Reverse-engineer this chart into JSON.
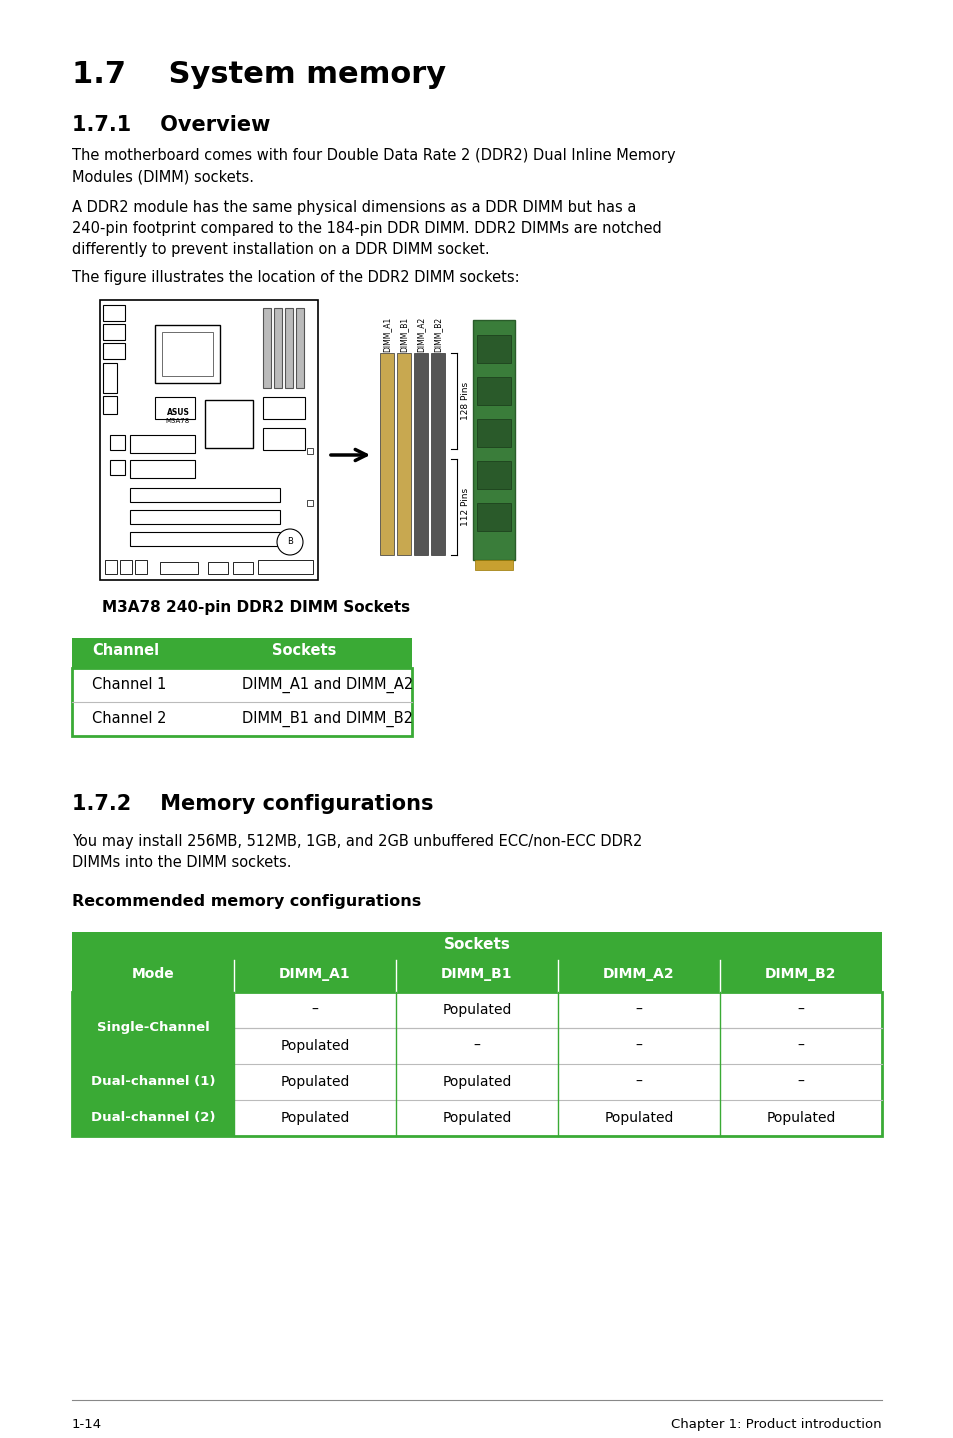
{
  "page_bg": "#ffffff",
  "title_17": "1.7    System memory",
  "title_171": "1.7.1    Overview",
  "para1": "The motherboard comes with four Double Data Rate 2 (DDR2) Dual Inline Memory\nModules (DIMM) sockets.",
  "para2": "A DDR2 module has the same physical dimensions as a DDR DIMM but has a\n240-pin footprint compared to the 184-pin DDR DIMM. DDR2 DIMMs are notched\ndifferently to prevent installation on a DDR DIMM socket.",
  "para3": "The figure illustrates the location of the DDR2 DIMM sockets:",
  "fig_caption": "M3A78 240-pin DDR2 DIMM Sockets",
  "table1_header": [
    "Channel",
    "Sockets"
  ],
  "table1_rows": [
    [
      "Channel 1",
      "DIMM_A1 and DIMM_A2"
    ],
    [
      "Channel 2",
      "DIMM_B1 and DIMM_B2"
    ]
  ],
  "title_172": "1.7.2    Memory configurations",
  "para4": "You may install 256MB, 512MB, 1GB, and 2GB unbuffered ECC/non-ECC DDR2\nDIMMs into the DIMM sockets.",
  "rec_mem_title": "Recommended memory configurations",
  "table2_header_top": "Sockets",
  "table2_header": [
    "Mode",
    "DIMM_A1",
    "DIMM_B1",
    "DIMM_A2",
    "DIMM_B2"
  ],
  "table2_rows": [
    [
      "Single-Channel",
      "–",
      "Populated",
      "–",
      "–"
    ],
    [
      "Single-Channel",
      "Populated",
      "–",
      "–",
      "–"
    ],
    [
      "Dual-channel (1)",
      "Populated",
      "Populated",
      "–",
      "–"
    ],
    [
      "Dual-channel (2)",
      "Populated",
      "Populated",
      "Populated",
      "Populated"
    ]
  ],
  "green_color": "#3aaa35",
  "footer_left": "1-14",
  "footer_right": "Chapter 1: Product introduction",
  "body_font_size": 10.5,
  "title1_font_size": 22,
  "title2_font_size": 15
}
